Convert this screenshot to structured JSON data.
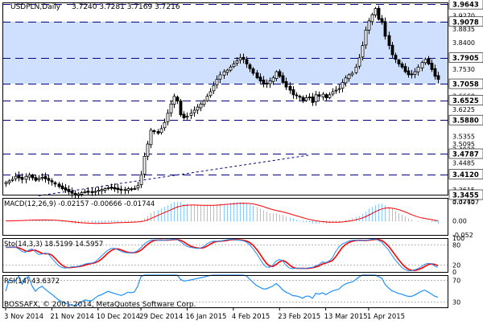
{
  "header": {
    "symbol": "USDPLN,Daily",
    "ohlc": "3.7240 3.7281 3.7169 3.7216"
  },
  "footer": {
    "copyright": "BOSSAFX, © 2001-2014, MetaQuotes Software Corp."
  },
  "colors": {
    "background": "#ffffff",
    "zone": "#cfe0ff",
    "candle_up": "#ffffff",
    "candle_down": "#000000",
    "macd_signal": "#ff0000",
    "macd_histogram": "#1e90ff",
    "stoch_main": "#1e90ff",
    "stoch_signal": "#ff0000",
    "rsi": "#1e90ff",
    "level_line": "#000080",
    "label_box": "#ffffff"
  },
  "chart_data": [
    {
      "type": "candlestick",
      "title": "USDPLN,Daily",
      "ylim": [
        3.3455,
        3.97
      ],
      "x_labels": [
        "3 Nov 2014",
        "21 Nov 2014",
        "10 Dec 2014",
        "29 Dec 2014",
        "16 Jan 2015",
        "4 Feb 2015",
        "23 Feb 2015",
        "13 Mar 2015",
        "1 Apr 2015"
      ],
      "y_ticks": [
        "3.9270",
        "3.8835",
        "3.8400",
        "3.7965",
        "3.7530",
        "3.7095",
        "3.6660",
        "3.6225",
        "3.5790",
        "3.5355",
        "3.5095",
        "3.4920",
        "3.4485",
        "3.4050",
        "3.3615",
        "3.3245"
      ],
      "levels": [
        "3.9643",
        "3.9078",
        "3.7905",
        "3.7058",
        "3.6525",
        "3.5880",
        "3.4787",
        "3.4120",
        "3.3455"
      ],
      "zone": [
        3.7058,
        3.9078
      ],
      "trendline": [
        [
          10,
          3.342
        ],
        [
          92,
          3.474
        ]
      ],
      "close": [
        3.385,
        3.39,
        3.395,
        3.405,
        3.4,
        3.395,
        3.405,
        3.41,
        3.4,
        3.392,
        3.398,
        3.402,
        3.397,
        3.392,
        3.387,
        3.38,
        3.372,
        3.365,
        3.36,
        3.355,
        3.35,
        3.345,
        3.348,
        3.352,
        3.355,
        3.353,
        3.352,
        3.356,
        3.36,
        3.362,
        3.365,
        3.368,
        3.366,
        3.364,
        3.362,
        3.36,
        3.362,
        3.365,
        3.364,
        3.365,
        3.375,
        3.41,
        3.47,
        3.51,
        3.555,
        3.55,
        3.545,
        3.56,
        3.58,
        3.61,
        3.64,
        3.665,
        3.65,
        3.605,
        3.595,
        3.6,
        3.61,
        3.62,
        3.63,
        3.64,
        3.65,
        3.665,
        3.68,
        3.7,
        3.72,
        3.735,
        3.745,
        3.75,
        3.76,
        3.77,
        3.78,
        3.79,
        3.785,
        3.77,
        3.755,
        3.74,
        3.725,
        3.715,
        3.705,
        3.705,
        3.715,
        3.725,
        3.745,
        3.73,
        3.71,
        3.695,
        3.685,
        3.67,
        3.668,
        3.662,
        3.65,
        3.66,
        3.66,
        3.645,
        3.67,
        3.665,
        3.672,
        3.66,
        3.67,
        3.68,
        3.685,
        3.69,
        3.71,
        3.725,
        3.735,
        3.74,
        3.76,
        3.79,
        3.83,
        3.88,
        3.91,
        3.93,
        3.95,
        3.915,
        3.905,
        3.86,
        3.83,
        3.8,
        3.785,
        3.77,
        3.76,
        3.745,
        3.735,
        3.735,
        3.745,
        3.76,
        3.775,
        3.785,
        3.77,
        3.752,
        3.73,
        3.72
      ]
    },
    {
      "type": "macd",
      "label": "MACD(12,26,9) -0.02157 -0.00666 -0.01744",
      "ylim": [
        -0.052,
        0.0857
      ],
      "y_ticks": [
        "0.07107",
        "0.00",
        "-0.052"
      ]
    },
    {
      "type": "stochastic",
      "label": "Sto(14,3,3) 18.5199 14.5957",
      "ylim": [
        0,
        100
      ],
      "y_ticks": [
        "100",
        "80",
        "20",
        "0"
      ],
      "levels": [
        80,
        20
      ]
    },
    {
      "type": "rsi",
      "label": "RSI(14) 43.6372",
      "ylim": [
        20,
        80
      ],
      "y_ticks": [
        "70",
        "30"
      ],
      "levels": [
        70,
        30
      ]
    }
  ]
}
